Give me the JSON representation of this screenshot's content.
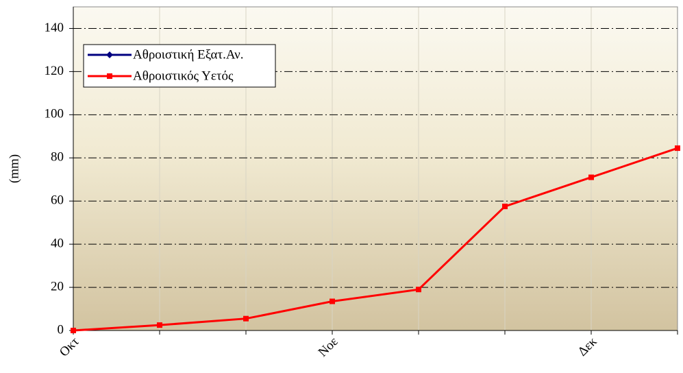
{
  "chart_data": {
    "type": "line",
    "y_label": "(mm)",
    "categories": [
      "Οκτ",
      null,
      null,
      "Νοε",
      null,
      null,
      "Δεκ",
      null
    ],
    "series": [
      {
        "name": "Αθροιστική Εξατ.Αν.",
        "color": "#000080",
        "marker": "diamond",
        "values": [
          null,
          null,
          null,
          null,
          null,
          null,
          null,
          null
        ]
      },
      {
        "name": "Αθροιστικός Υετός",
        "color": "#ff0000",
        "marker": "square",
        "values": [
          0,
          2.5,
          5.5,
          13.5,
          19,
          57.5,
          71,
          84.5
        ]
      }
    ],
    "ylim": [
      0,
      150
    ],
    "yticks": [
      0,
      20,
      40,
      60,
      80,
      100,
      120,
      140
    ],
    "grid": true,
    "legend": "upper left"
  }
}
